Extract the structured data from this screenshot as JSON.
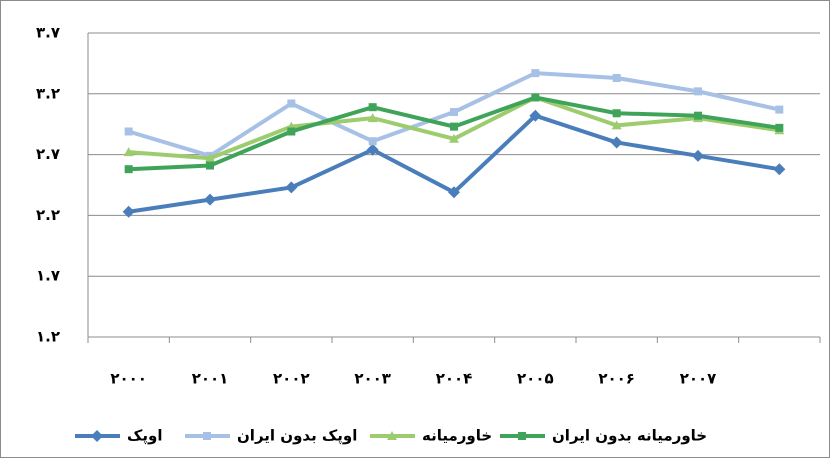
{
  "chart_data": {
    "type": "line",
    "categories": [
      "۲۰۰۰",
      "۲۰۰۱",
      "۲۰۰۲",
      "۲۰۰۳",
      "۲۰۰۴",
      "۲۰۰۵",
      "۲۰۰۶",
      "۲۰۰۷",
      null
    ],
    "series": [
      {
        "name": "اوپک",
        "color": "#4a7ebb",
        "marker": "diamond",
        "values": [
          2.23,
          2.33,
          2.43,
          2.74,
          2.39,
          3.02,
          2.8,
          2.69,
          2.58
        ]
      },
      {
        "name": "اوپک بدون ایران",
        "color": "#a7c0e6",
        "marker": "square",
        "values": [
          2.89,
          2.69,
          3.12,
          2.81,
          3.05,
          3.37,
          3.33,
          3.22,
          3.07
        ]
      },
      {
        "name": "خاورمیانه",
        "color": "#9ccc6e",
        "marker": "triangle",
        "values": [
          2.72,
          2.67,
          2.93,
          3.0,
          2.83,
          3.17,
          2.94,
          3.0,
          2.9
        ]
      },
      {
        "name": "خاورمیانه بدون ایران",
        "color": "#3fa45a",
        "marker": "square",
        "values": [
          2.58,
          2.61,
          2.89,
          3.09,
          2.93,
          3.17,
          3.04,
          3.02,
          2.92
        ]
      }
    ],
    "ylim": [
      1.2,
      3.7
    ],
    "yticks": [
      {
        "value": 1.2,
        "label": "۱.۲"
      },
      {
        "value": 1.7,
        "label": "۱.۷"
      },
      {
        "value": 2.2,
        "label": "۲.۲"
      },
      {
        "value": 2.7,
        "label": "۲.۷"
      },
      {
        "value": 3.2,
        "label": "۳.۲"
      },
      {
        "value": 3.7,
        "label": "۳.۷"
      }
    ],
    "grid": true,
    "legend": "bottom"
  }
}
